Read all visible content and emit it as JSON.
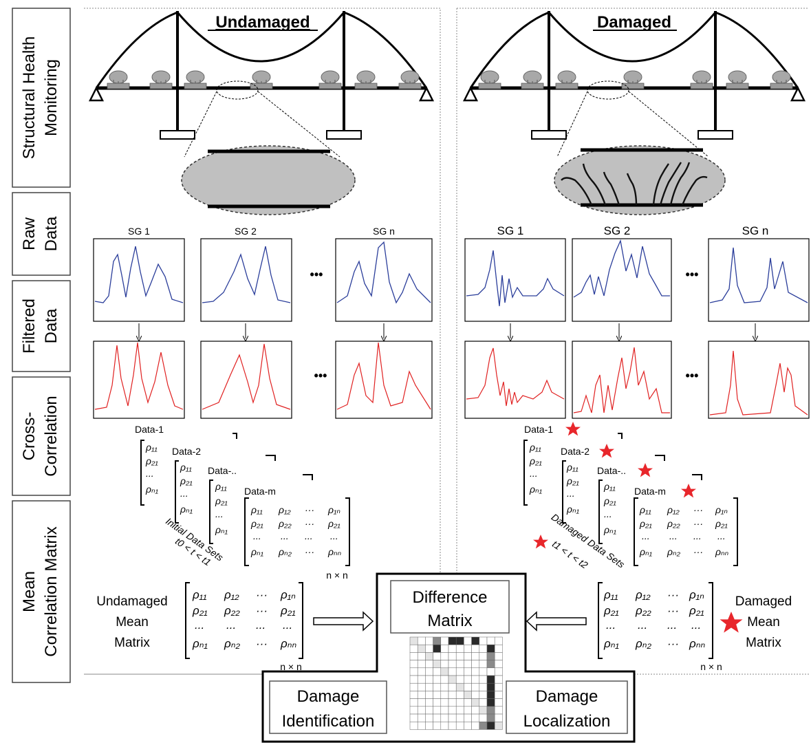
{
  "stages": [
    {
      "line1": "Structural Health",
      "line2": "Monitoring"
    },
    {
      "line1": "Raw",
      "line2": "Data"
    },
    {
      "line1": "Filtered",
      "line2": "Data"
    },
    {
      "line1": "Cross-",
      "line2": "Correlation"
    },
    {
      "line1": "Mean",
      "line2": "Correlation Matrix"
    }
  ],
  "undamaged": {
    "title": "Undamaged",
    "sensors": [
      "SG 1",
      "SG 2",
      "SG n"
    ],
    "data_labels": [
      "Data-1",
      "Data-2",
      "Data-..",
      "Data-m"
    ],
    "data_sets_label": "Initial Data Sets",
    "time_range": "t0 < t < t1",
    "size_label": "n × n",
    "mean_label": [
      "Undamaged",
      "Mean",
      "Matrix"
    ],
    "mean_size_label": "n × n"
  },
  "damaged": {
    "title": "Damaged",
    "sensors": [
      "SG 1",
      "SG 2",
      "SG n"
    ],
    "data_labels": [
      "Data-1",
      "Data-2",
      "Data-..",
      "Data-m"
    ],
    "data_sets_label": "Damaged Data Sets",
    "time_range": "t1 < t < t2",
    "mean_label": [
      "Damaged",
      "Mean",
      "Matrix"
    ],
    "mean_size_label": "n × n",
    "accent_color": "#e8262b"
  },
  "ellipsis": "•••",
  "difference": {
    "line1": "Difference",
    "line2": "Matrix"
  },
  "identification": {
    "line1": "Damage",
    "line2": "Identification"
  },
  "localization": {
    "line1": "Damage",
    "line2": "Localization"
  },
  "matrix_cells": {
    "rho": "ρ",
    "dots": "...",
    "cdots": "···"
  },
  "colors": {
    "raw_signal": "#2a3d9a",
    "filtered_signal": "#e02020",
    "star": "#e8262b",
    "sensor": "#a0a0a0"
  }
}
